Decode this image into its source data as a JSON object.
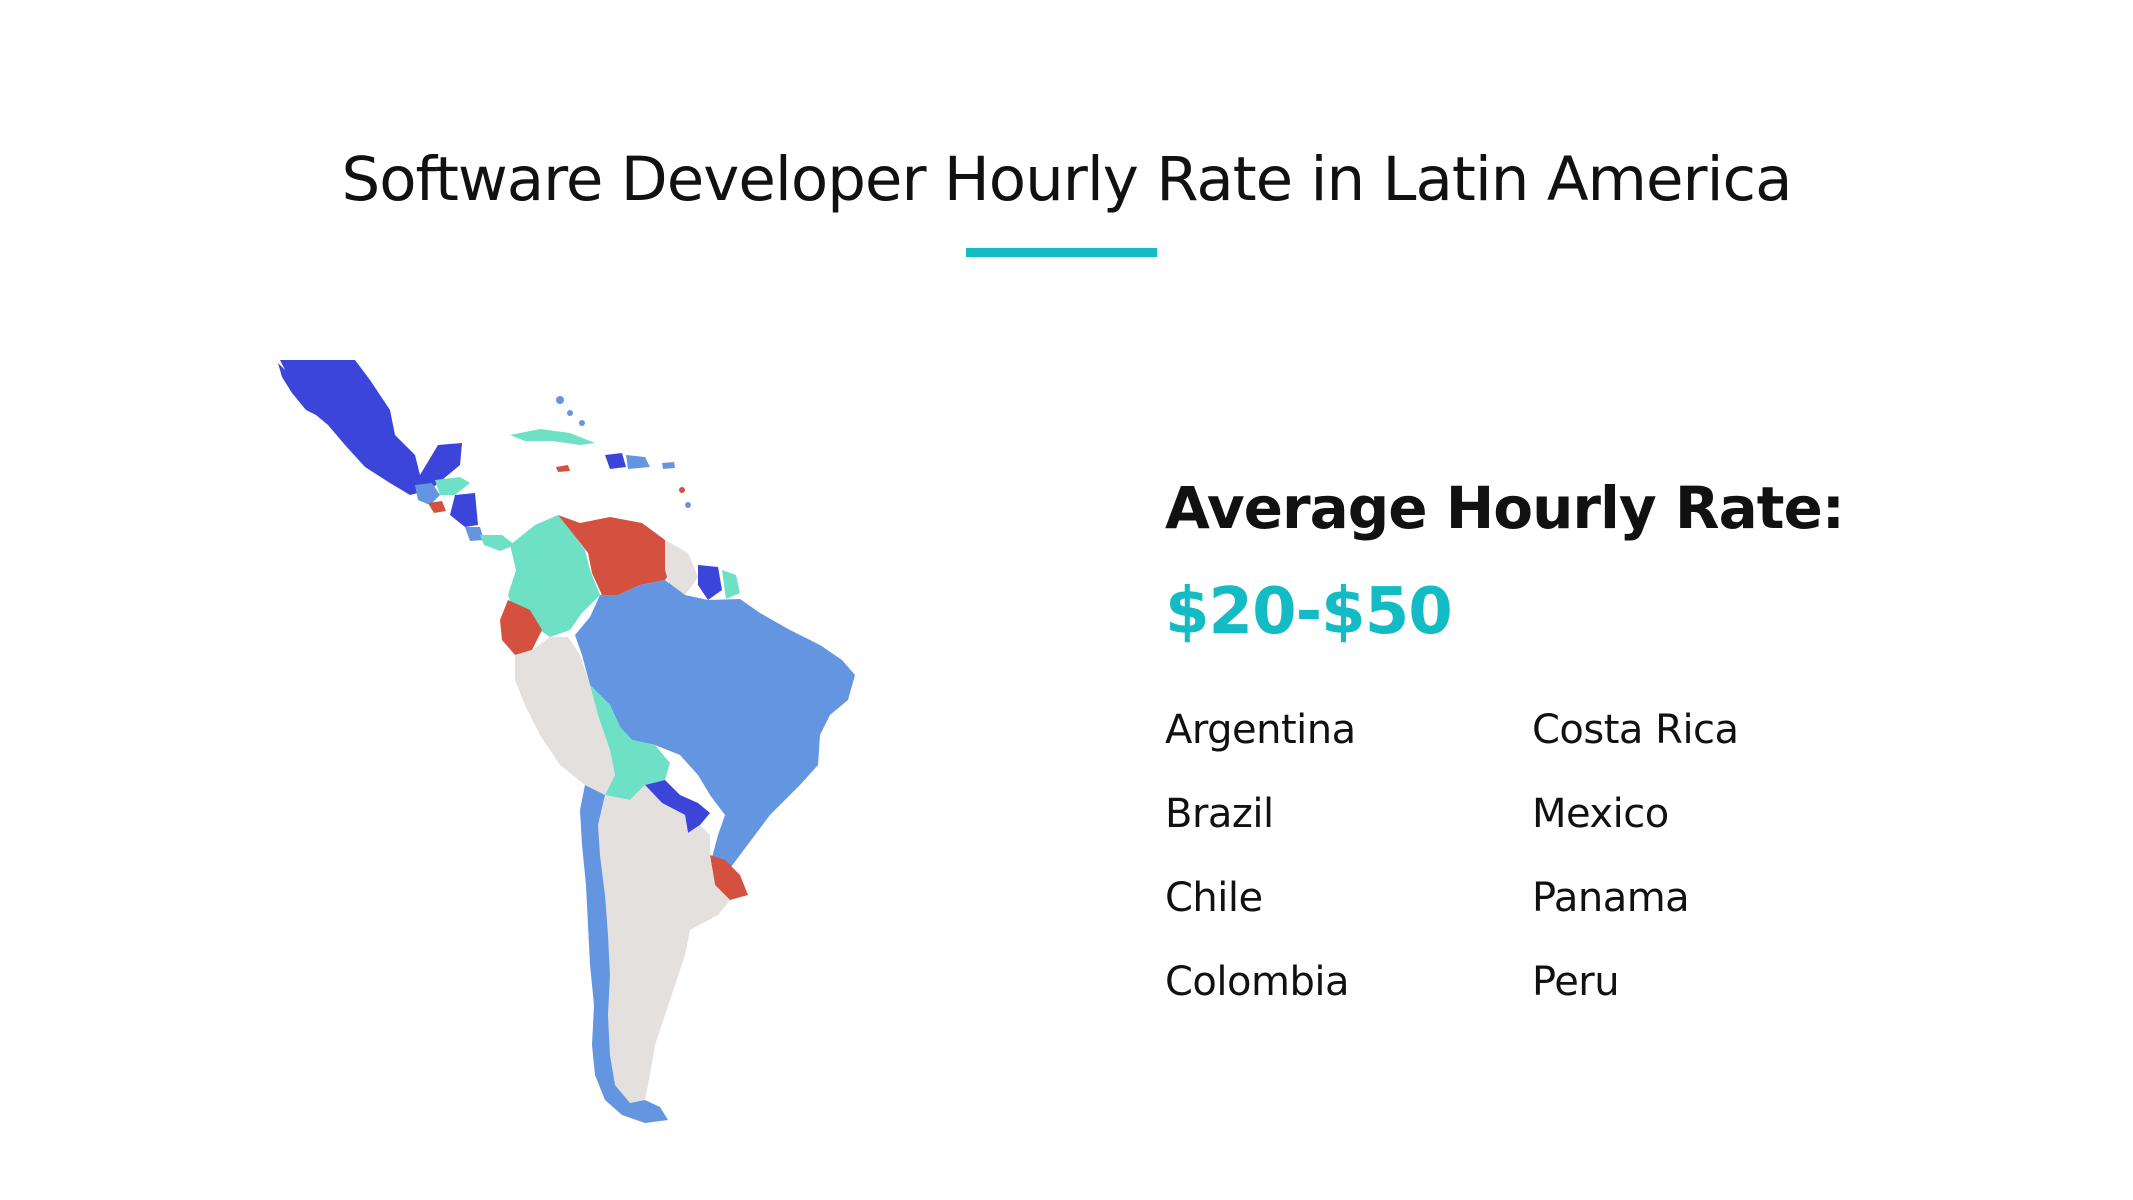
{
  "title": "Software Developer Hourly Rate in Latin America",
  "accent_color": "#13bcc4",
  "map": {
    "region": "Latin America",
    "palette": {
      "dark_blue": "#3b45d9",
      "mid_blue": "#6495e0",
      "teal": "#6ee0c6",
      "red": "#d4503f",
      "grey": "#e3e0de"
    }
  },
  "rate": {
    "heading": "Average Hourly Rate:",
    "value": "$20-$50"
  },
  "countries": [
    "Argentina",
    "Brazil",
    "Chile",
    "Colombia",
    "Costa Rica",
    "Mexico",
    "Panama",
    "Peru"
  ]
}
